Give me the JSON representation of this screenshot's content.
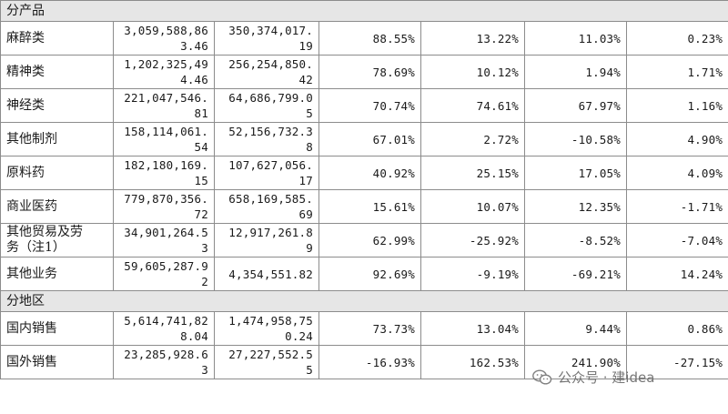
{
  "sections": [
    {
      "title": "分产品",
      "rows": [
        {
          "label": "麻醉类",
          "c1": "3,059,588,86\n3.46",
          "c2": "350,374,017.\n19",
          "c3": "88.55%",
          "c4": "13.22%",
          "c5": "11.03%",
          "c6": "0.23%"
        },
        {
          "label": "精神类",
          "c1": "1,202,325,49\n4.46",
          "c2": "256,254,850.\n42",
          "c3": "78.69%",
          "c4": "10.12%",
          "c5": "1.94%",
          "c6": "1.71%"
        },
        {
          "label": "神经类",
          "c1": "221,047,546.\n81",
          "c2": "64,686,799.0\n5",
          "c3": "70.74%",
          "c4": "74.61%",
          "c5": "67.97%",
          "c6": "1.16%"
        },
        {
          "label": "其他制剂",
          "c1": "158,114,061.\n54",
          "c2": "52,156,732.3\n8",
          "c3": "67.01%",
          "c4": "2.72%",
          "c5": "-10.58%",
          "c6": "4.90%"
        },
        {
          "label": "原料药",
          "c1": "182,180,169.\n15",
          "c2": "107,627,056.\n17",
          "c3": "40.92%",
          "c4": "25.15%",
          "c5": "17.05%",
          "c6": "4.09%"
        },
        {
          "label": "商业医药",
          "c1": "779,870,356.\n72",
          "c2": "658,169,585.\n69",
          "c3": "15.61%",
          "c4": "10.07%",
          "c5": "12.35%",
          "c6": "-1.71%"
        },
        {
          "label": "其他贸易及劳\n务（注1）",
          "c1": "34,901,264.5\n3",
          "c2": "12,917,261.8\n9",
          "c3": "62.99%",
          "c4": "-25.92%",
          "c5": "-8.52%",
          "c6": "-7.04%"
        },
        {
          "label": "其他业务",
          "c1": "59,605,287.9\n2",
          "c2": "4,354,551.82",
          "c3": "92.69%",
          "c4": "-9.19%",
          "c5": "-69.21%",
          "c6": "14.24%"
        }
      ]
    },
    {
      "title": "分地区",
      "rows": [
        {
          "label": "国内销售",
          "c1": "5,614,741,82\n8.04",
          "c2": "1,474,958,75\n0.24",
          "c3": "73.73%",
          "c4": "13.04%",
          "c5": "9.44%",
          "c6": "0.86%"
        },
        {
          "label": "国外销售",
          "c1": "23,285,928.6\n3",
          "c2": "27,227,552.5\n5",
          "c3": "-16.93%",
          "c4": "162.53%",
          "c5": "241.90%",
          "c6": "-27.15%"
        }
      ]
    }
  ],
  "watermark": {
    "text": "公众号 · 建idea",
    "icon": "wechat-icon"
  }
}
